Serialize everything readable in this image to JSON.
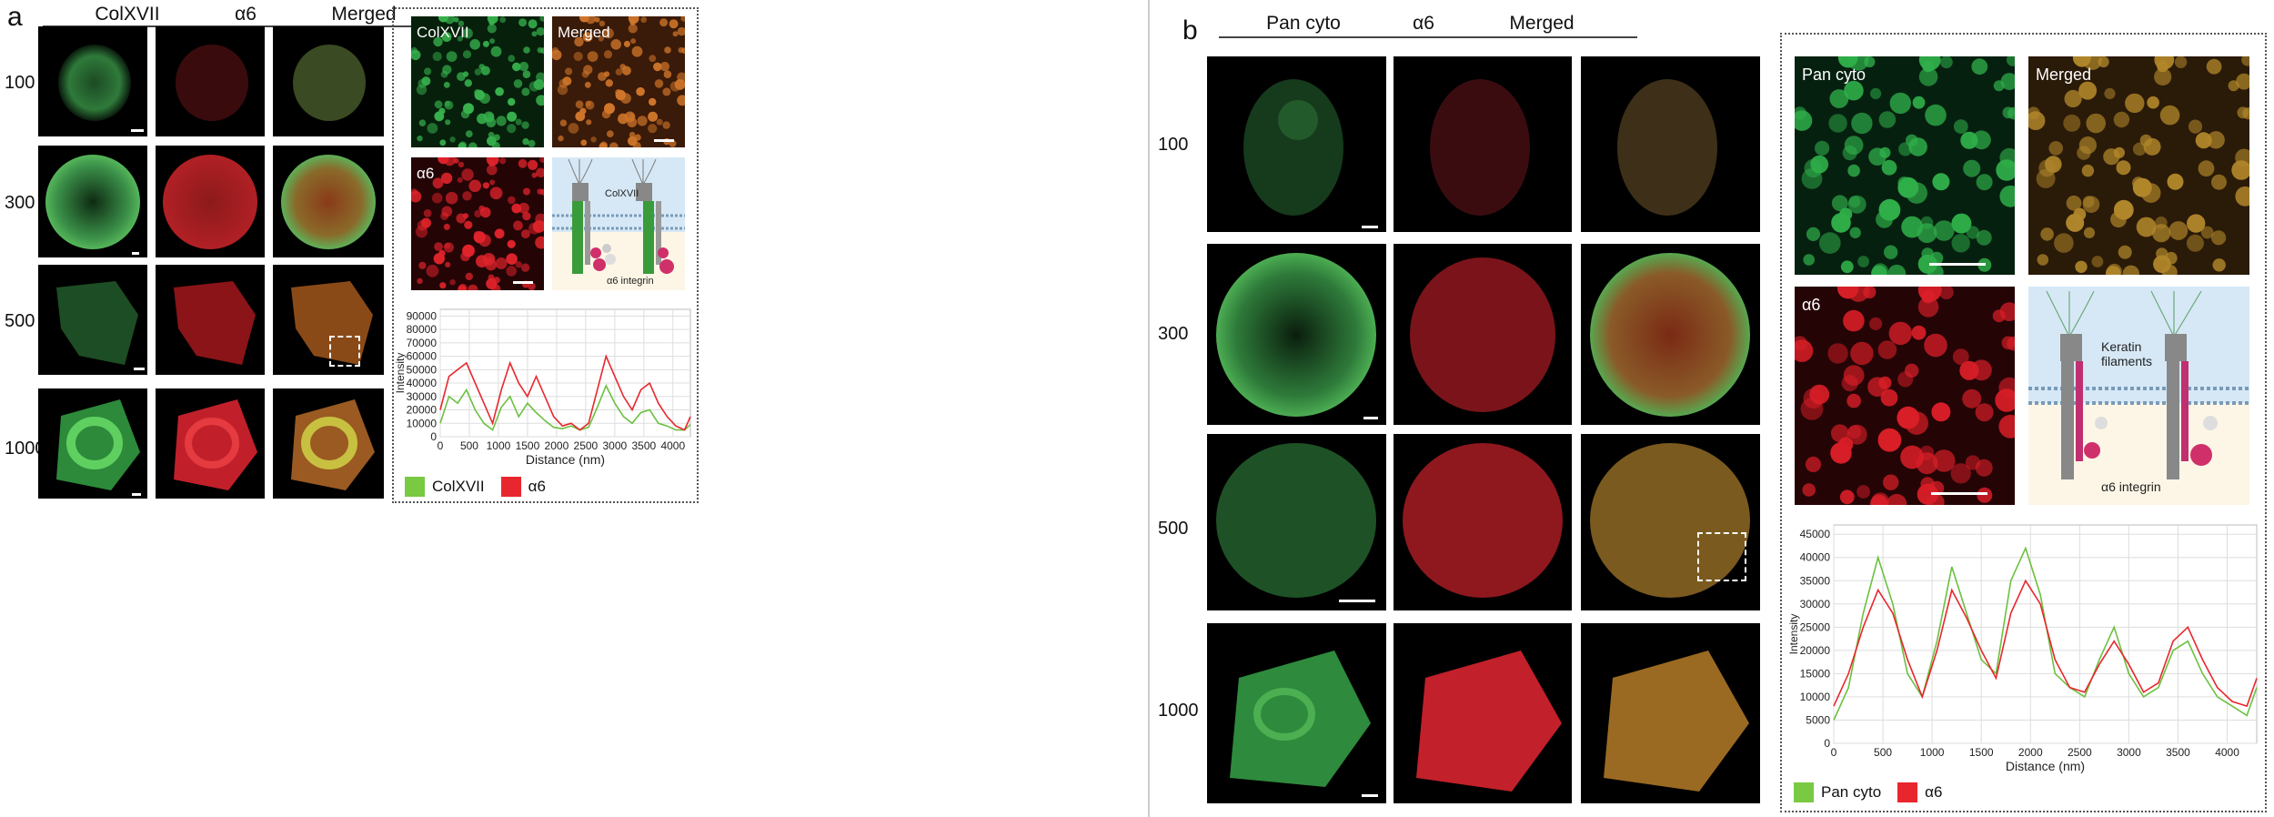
{
  "panel_a": {
    "label": "a",
    "columns": [
      "ColXVII",
      "α6",
      "Merged"
    ],
    "rows": [
      "100",
      "300",
      "500",
      "1000"
    ],
    "inset_labels": {
      "top_left": "ColXVII",
      "top_right": "Merged",
      "bottom_left": "α6"
    },
    "diagram": {
      "label_protein": "ColXVII",
      "label_integrin": "α6 integrin"
    },
    "legend": [
      "ColXVII",
      "α6"
    ]
  },
  "panel_b": {
    "label": "b",
    "columns": [
      "Pan cyto",
      "α6",
      "Merged"
    ],
    "rows": [
      "100",
      "300",
      "500",
      "1000"
    ],
    "inset_labels": {
      "top_left": "Pan cyto",
      "top_right": "Merged",
      "bottom_left": "α6"
    },
    "diagram": {
      "label_protein": "Keratin filaments",
      "label_integrin": "α6 integrin"
    },
    "legend": [
      "Pan cyto",
      "α6"
    ]
  },
  "colors": {
    "green": "#3cc43c",
    "red": "#e0262e",
    "legend_green": "#7ac943",
    "legend_red": "#e8262d"
  },
  "chart_data": [
    {
      "type": "line",
      "xlabel": "Distance (nm)",
      "ylabel": "Intensity",
      "xlim": [
        0,
        4300
      ],
      "ylim": [
        0,
        95000
      ],
      "xticks": [
        0,
        500,
        1000,
        1500,
        2000,
        2500,
        3000,
        3500,
        4000
      ],
      "yticks": [
        0,
        10000,
        20000,
        30000,
        40000,
        50000,
        60000,
        70000,
        80000,
        90000
      ],
      "series": [
        {
          "name": "ColXVII",
          "color": "#6cc040",
          "x": [
            0,
            150,
            300,
            450,
            600,
            750,
            900,
            1050,
            1200,
            1350,
            1500,
            1650,
            1800,
            1950,
            2100,
            2250,
            2400,
            2550,
            2700,
            2850,
            3000,
            3150,
            3300,
            3450,
            3600,
            3750,
            3900,
            4050,
            4200,
            4300
          ],
          "y": [
            10000,
            30000,
            25000,
            35000,
            20000,
            10000,
            5000,
            22000,
            30000,
            15000,
            25000,
            18000,
            12000,
            7000,
            6000,
            8000,
            5000,
            7000,
            22000,
            38000,
            25000,
            15000,
            10000,
            18000,
            20000,
            10000,
            8000,
            5000,
            5000,
            9000
          ]
        },
        {
          "name": "α6",
          "color": "#e8262d",
          "x": [
            0,
            150,
            300,
            450,
            600,
            750,
            900,
            1050,
            1200,
            1350,
            1500,
            1650,
            1800,
            1950,
            2100,
            2250,
            2400,
            2550,
            2700,
            2850,
            3000,
            3150,
            3300,
            3450,
            3600,
            3750,
            3900,
            4050,
            4200,
            4300
          ],
          "y": [
            20000,
            45000,
            50000,
            55000,
            40000,
            25000,
            10000,
            35000,
            55000,
            40000,
            30000,
            45000,
            30000,
            15000,
            8000,
            10000,
            5000,
            10000,
            35000,
            60000,
            45000,
            30000,
            20000,
            35000,
            40000,
            25000,
            15000,
            8000,
            5000,
            15000
          ]
        }
      ]
    },
    {
      "type": "line",
      "xlabel": "Distance (nm)",
      "ylabel": "Intensity",
      "xlim": [
        0,
        4300
      ],
      "ylim": [
        0,
        47000
      ],
      "xticks": [
        0,
        500,
        1000,
        1500,
        2000,
        2500,
        3000,
        3500,
        4000
      ],
      "yticks": [
        0,
        5000,
        10000,
        15000,
        20000,
        25000,
        30000,
        35000,
        40000,
        45000
      ],
      "series": [
        {
          "name": "Pan cyto",
          "color": "#6cc040",
          "x": [
            0,
            150,
            300,
            450,
            600,
            750,
            900,
            1050,
            1200,
            1350,
            1500,
            1650,
            1800,
            1950,
            2100,
            2250,
            2400,
            2550,
            2700,
            2850,
            3000,
            3150,
            3300,
            3450,
            3600,
            3750,
            3900,
            4050,
            4200,
            4300
          ],
          "y": [
            5000,
            12000,
            28000,
            40000,
            30000,
            15000,
            10000,
            22000,
            38000,
            28000,
            18000,
            15000,
            35000,
            42000,
            32000,
            15000,
            12000,
            10000,
            18000,
            25000,
            15000,
            10000,
            12000,
            20000,
            22000,
            15000,
            10000,
            8000,
            6000,
            12000
          ]
        },
        {
          "name": "α6",
          "color": "#e8262d",
          "x": [
            0,
            150,
            300,
            450,
            600,
            750,
            900,
            1050,
            1200,
            1350,
            1500,
            1650,
            1800,
            1950,
            2100,
            2250,
            2400,
            2550,
            2700,
            2850,
            3000,
            3150,
            3300,
            3450,
            3600,
            3750,
            3900,
            4050,
            4200,
            4300
          ],
          "y": [
            8000,
            15000,
            25000,
            33000,
            28000,
            18000,
            10000,
            20000,
            33000,
            27000,
            20000,
            14000,
            28000,
            35000,
            30000,
            18000,
            12000,
            11000,
            17000,
            22000,
            17000,
            11000,
            13000,
            22000,
            25000,
            18000,
            12000,
            9000,
            8000,
            14000
          ]
        }
      ]
    }
  ]
}
